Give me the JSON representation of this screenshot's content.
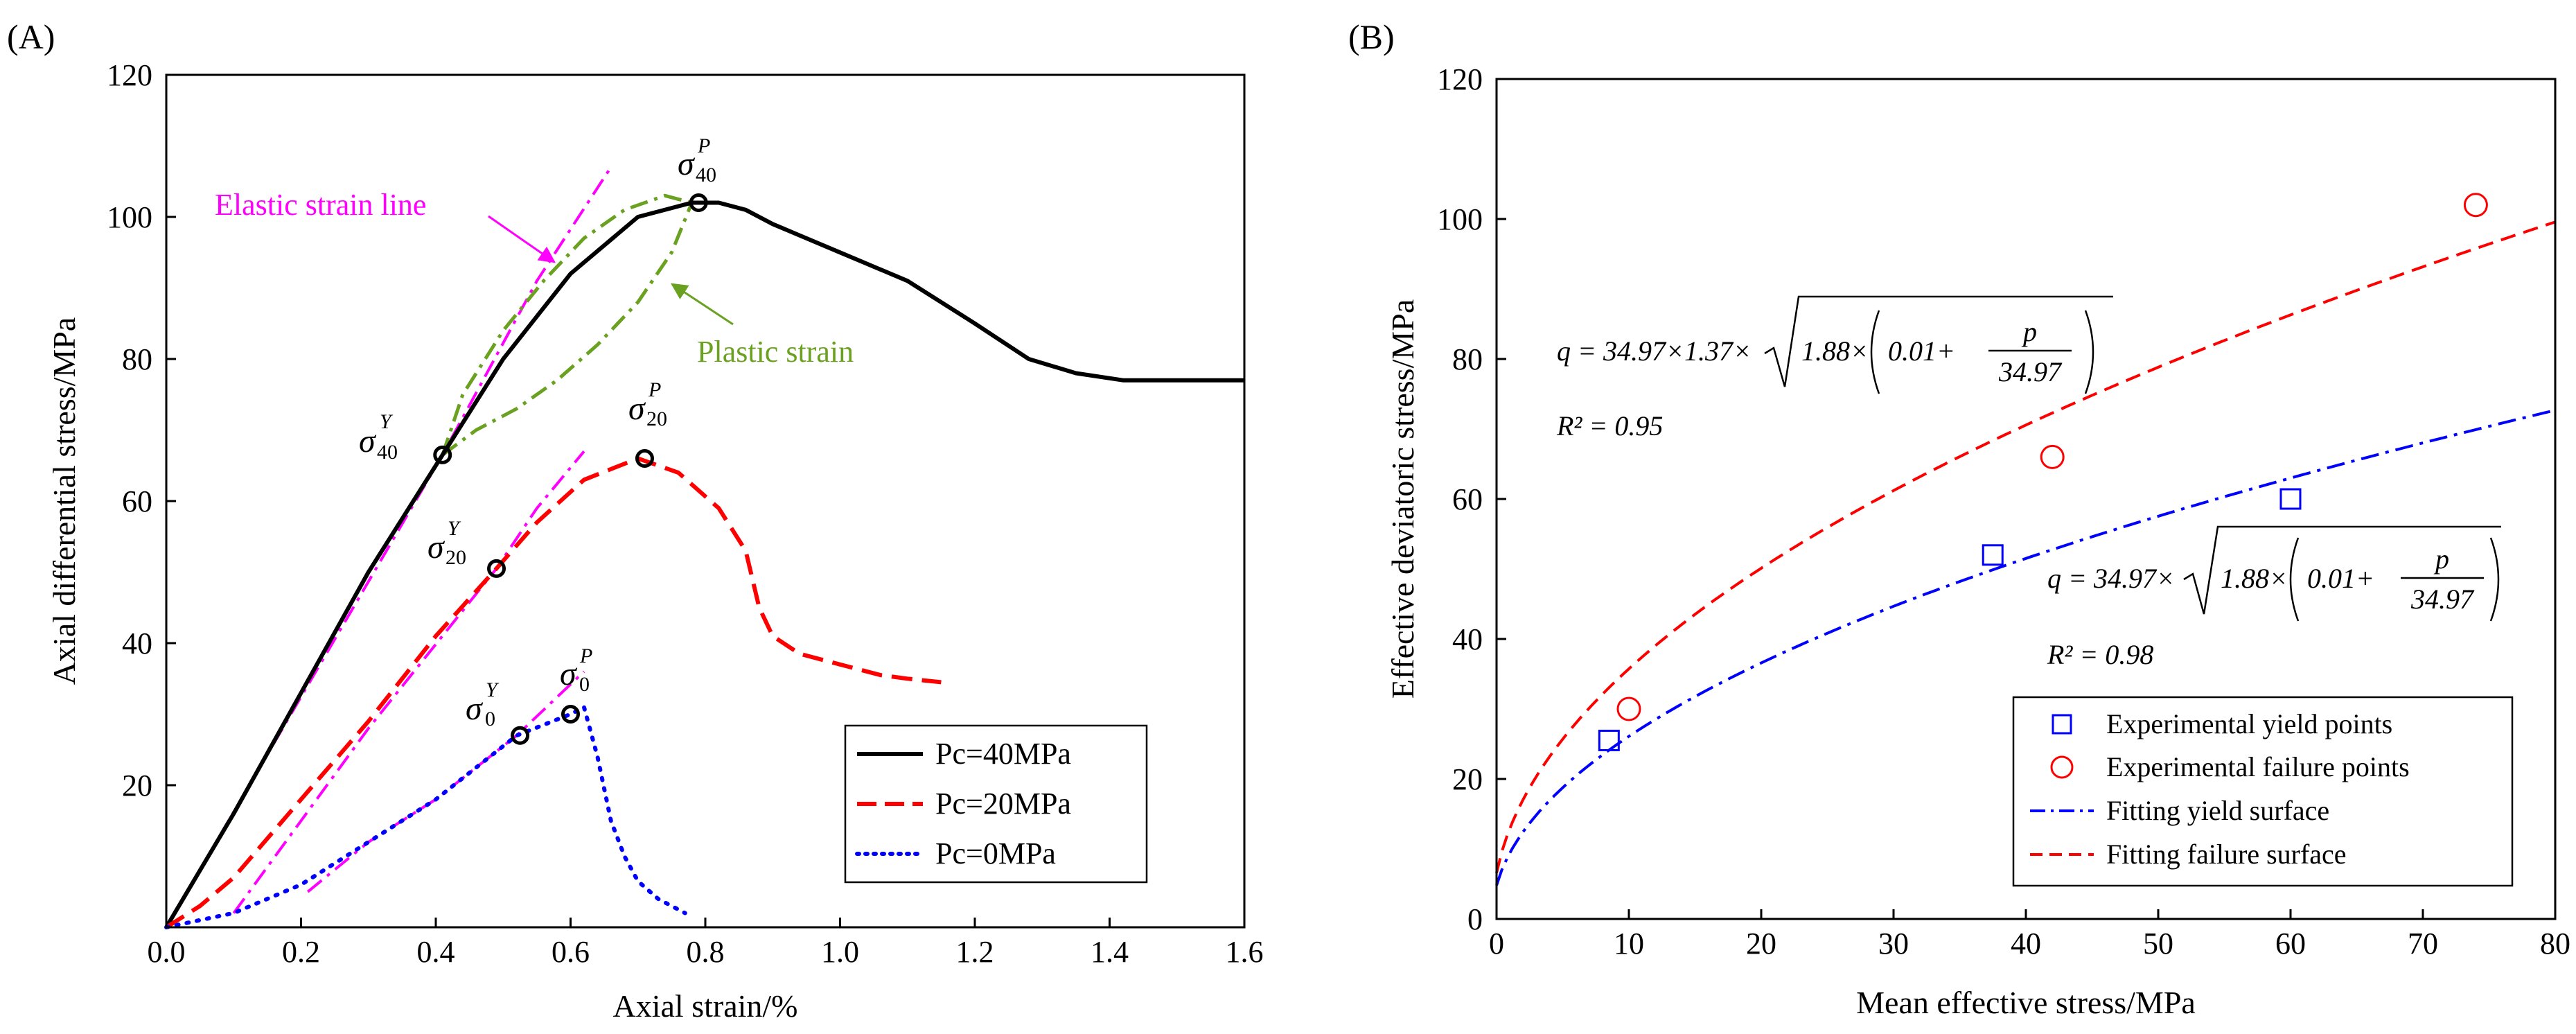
{
  "figure": {
    "panelA_label": "(A)",
    "panelB_label": "(B)"
  },
  "chart_data": [
    {
      "panel": "(A)",
      "type": "line",
      "xlabel": "Axial strain/%",
      "ylabel": "Axial differential stress/MPa",
      "xlim": [
        0,
        1.6
      ],
      "ylim": [
        0,
        120
      ],
      "xticks": [
        "0.0",
        "0.2",
        "0.4",
        "0.6",
        "0.8",
        "1.0",
        "1.2",
        "1.4",
        "1.6"
      ],
      "yticks": [
        "20",
        "40",
        "60",
        "80",
        "100",
        "120"
      ],
      "grid": false,
      "legend_position": "bottom-right",
      "colors": {
        "pc40": "#000000",
        "pc20": "#ff0000",
        "pc0": "#0000ff",
        "elastic": "#ff00ff",
        "plastic": "#6aa121"
      },
      "series": [
        {
          "name": "Pc=40MPa",
          "style": "solid",
          "x": [
            0,
            0.05,
            0.1,
            0.2,
            0.3,
            0.41,
            0.5,
            0.6,
            0.7,
            0.78,
            0.82,
            0.86,
            0.9,
            1.0,
            1.1,
            1.2,
            1.28,
            1.35,
            1.42,
            1.5,
            1.6
          ],
          "y": [
            0,
            8,
            16,
            33,
            50,
            66.5,
            80,
            92,
            100,
            102,
            102,
            101,
            99,
            95,
            91,
            85,
            80,
            78,
            77,
            77,
            77
          ]
        },
        {
          "name": "Pc=20MPa",
          "style": "dashed",
          "x": [
            0,
            0.05,
            0.1,
            0.2,
            0.3,
            0.4,
            0.49,
            0.55,
            0.62,
            0.7,
            0.76,
            0.82,
            0.86,
            0.88,
            0.9,
            0.94,
            1.0,
            1.06,
            1.1,
            1.15
          ],
          "y": [
            0,
            3,
            7,
            18,
            29,
            41,
            50.5,
            57,
            63,
            66,
            64,
            59,
            53,
            45,
            41,
            38.5,
            37,
            35.5,
            35,
            34.5
          ]
        },
        {
          "name": "Pc=0MPa",
          "style": "dotted",
          "x": [
            0,
            0.1,
            0.2,
            0.3,
            0.4,
            0.52,
            0.6,
            0.62,
            0.64,
            0.66,
            0.68,
            0.7,
            0.73,
            0.77
          ],
          "y": [
            0,
            2,
            6,
            12,
            18,
            27,
            30,
            31,
            24,
            15,
            10,
            6.5,
            4,
            2
          ]
        }
      ],
      "reference_lines": [
        {
          "kind": "elastic",
          "style": "dash-dot",
          "x": [
            0,
            0.41,
            0.55,
            0.66
          ],
          "y": [
            0,
            66.5,
            91,
            107
          ]
        },
        {
          "kind": "elastic",
          "style": "dash-dot",
          "x": [
            0.1,
            0.3,
            0.49,
            0.55,
            0.62
          ],
          "y": [
            2,
            28,
            50.5,
            59,
            67
          ]
        },
        {
          "kind": "elastic",
          "style": "dash-dot",
          "x": [
            0.21,
            0.3,
            0.4,
            0.52,
            0.62
          ],
          "y": [
            5,
            12,
            18,
            27,
            36
          ]
        }
      ],
      "plastic_loop": {
        "style": "dash-dot",
        "upper": {
          "x": [
            0.41,
            0.44,
            0.5,
            0.56,
            0.62,
            0.68,
            0.74,
            0.78
          ],
          "y": [
            66.5,
            75,
            84,
            91,
            97,
            101,
            103,
            102
          ]
        },
        "lower": {
          "x": [
            0.41,
            0.46,
            0.52,
            0.58,
            0.64,
            0.7,
            0.75,
            0.78
          ],
          "y": [
            66.5,
            70,
            73,
            77,
            82,
            88,
            95,
            102
          ]
        }
      },
      "marked_points": [
        {
          "label": "σ40P",
          "x": 0.79,
          "y": 102
        },
        {
          "label": "σ40Y",
          "x": 0.41,
          "y": 66.5
        },
        {
          "label": "σ20P",
          "x": 0.71,
          "y": 66
        },
        {
          "label": "σ20Y",
          "x": 0.49,
          "y": 50.5
        },
        {
          "label": "σ0Y",
          "x": 0.525,
          "y": 27
        },
        {
          "label": "σ0P",
          "x": 0.6,
          "y": 30
        }
      ],
      "annotations": {
        "elastic": "Elastic strain line",
        "plastic": "Plastic strain"
      },
      "symbols": {
        "sigma": "σ",
        "sup_P": "P",
        "sup_Y": "Y",
        "sub_40": "40",
        "sub_20": "20",
        "sub_0": "0"
      }
    },
    {
      "panel": "(B)",
      "type": "scatter",
      "xlabel": "Mean effective stress/MPa",
      "ylabel": "Effective deviatoric stress/MPa",
      "xlim": [
        0,
        80
      ],
      "ylim": [
        0,
        120
      ],
      "xticks": [
        "0",
        "10",
        "20",
        "30",
        "40",
        "50",
        "60",
        "70",
        "80"
      ],
      "yticks": [
        "0",
        "20",
        "40",
        "60",
        "80",
        "100",
        "120"
      ],
      "grid": false,
      "legend_position": "bottom-right",
      "colors": {
        "yield": "#0000ff",
        "failure": "#ff0000"
      },
      "series": [
        {
          "name": "Experimental yield points",
          "marker": "square",
          "x": [
            8.5,
            37.5,
            60
          ],
          "y": [
            25.5,
            52,
            60
          ]
        },
        {
          "name": "Experimental failure points",
          "marker": "circle",
          "x": [
            10,
            42,
            74
          ],
          "y": [
            30,
            66,
            102
          ]
        },
        {
          "name": "Fitting yield surface",
          "style": "dash-dot",
          "formula": "q = 34.97*sqrt(1.88*(0.01+p/34.97))"
        },
        {
          "name": "Fitting failure surface",
          "style": "dashed",
          "formula": "q = 34.97*1.37*sqrt(1.88*(0.01+p/34.97))"
        }
      ],
      "equations": {
        "failure_lhs": "q = 34.97×1.37×",
        "yield_lhs": "q = 34.97×",
        "inner_left": "1.88×",
        "inner_mid": "0.01+",
        "frac_num": "p",
        "frac_den": "34.97",
        "r2_failure": "R² = 0.95",
        "r2_yield": "R² = 0.98"
      }
    }
  ]
}
